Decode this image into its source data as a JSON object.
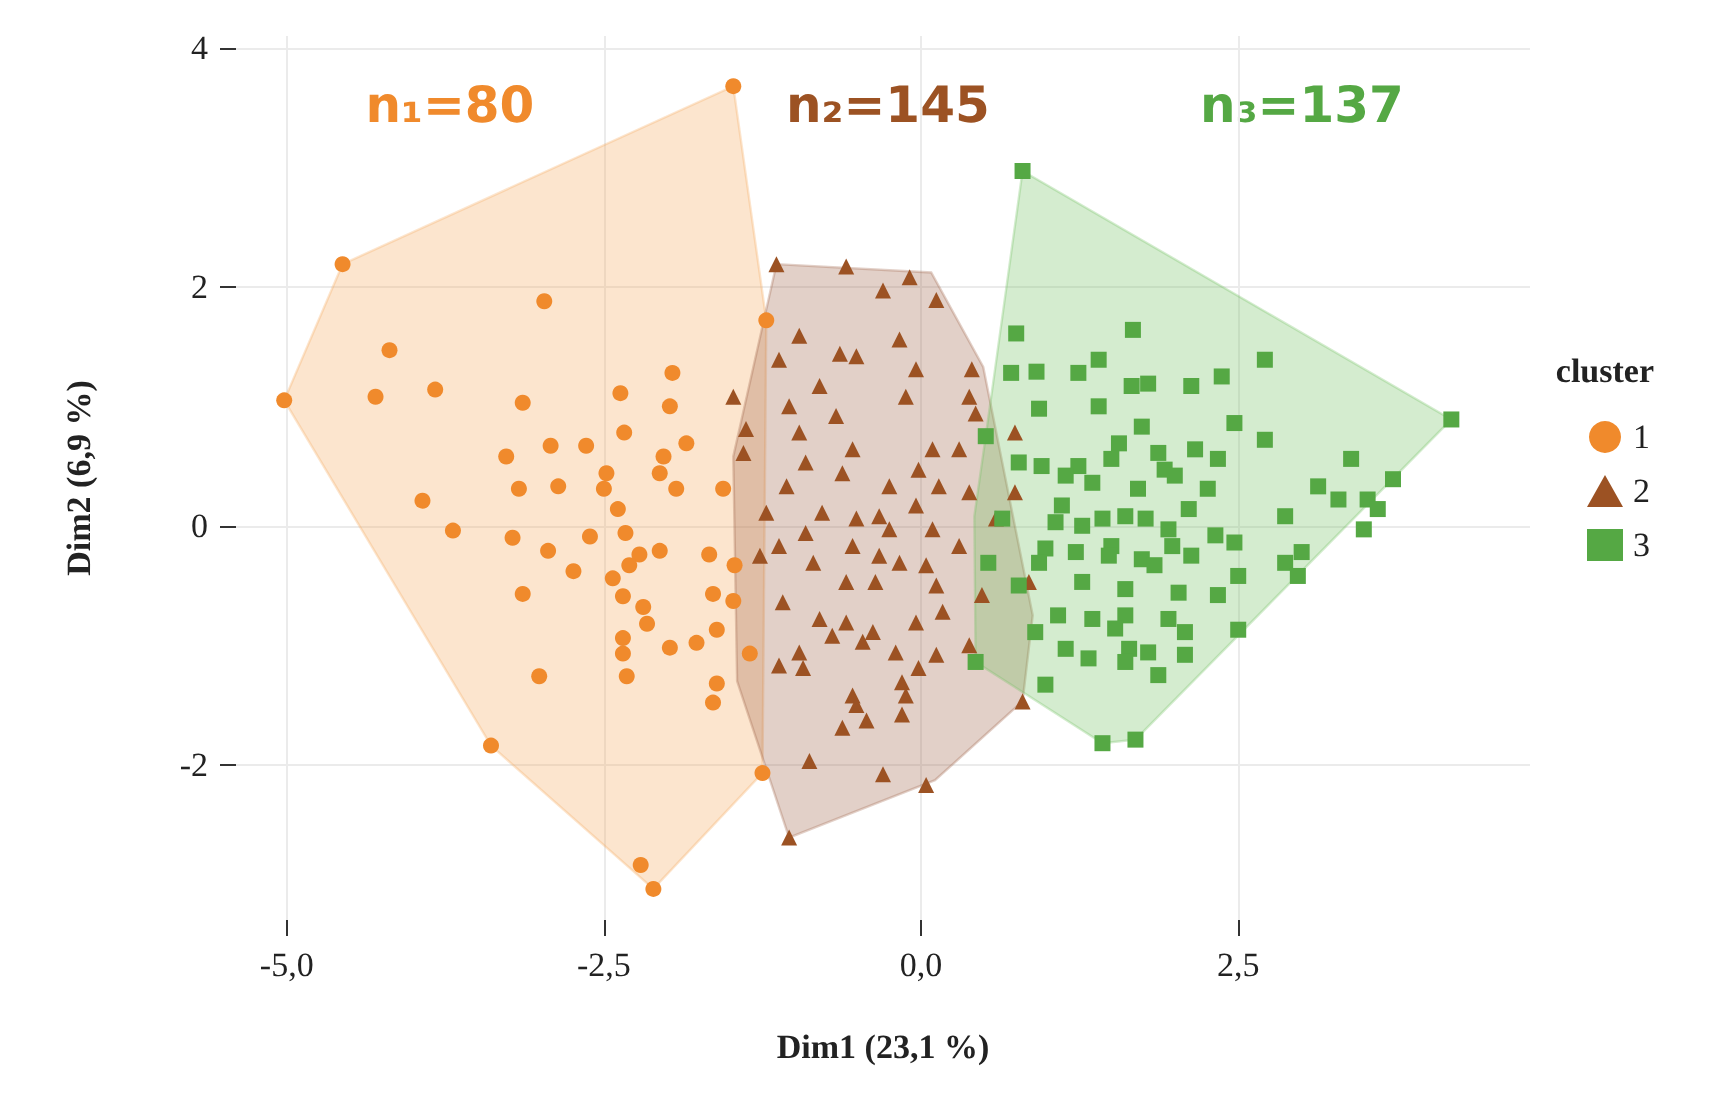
{
  "chart_data": {
    "type": "scatter",
    "xlabel": "Dim1 (23,1 %)",
    "ylabel": "Dim2 (6,9 %)",
    "legend_title": "cluster",
    "legend": "right",
    "grid": true,
    "annotations": [
      "n₁=80",
      "n₂=145",
      "n₃=137"
    ],
    "xlim": [
      -5.4,
      4.8
    ],
    "ylim": [
      -3.3,
      4.1
    ],
    "xticks": [
      {
        "value": -5,
        "label": "-5,0"
      },
      {
        "value": -2.5,
        "label": "-2,5"
      },
      {
        "value": 0,
        "label": "0,0"
      },
      {
        "value": 2.5,
        "label": "2,5"
      }
    ],
    "yticks": [
      -2,
      0,
      2,
      4
    ],
    "series": [
      {
        "type": "area",
        "color": "#f5a85c",
        "x": [
          -5.02,
          -4.56,
          -1.48,
          -1.22,
          -1.25,
          -2.11,
          -3.39
        ],
        "values": [
          1.05,
          2.19,
          3.68,
          1.72,
          -2.07,
          -3.04,
          -1.84
        ]
      },
      {
        "type": "area",
        "color": "#a0644a",
        "x": [
          -1.14,
          0.08,
          0.49,
          0.88,
          0.8,
          0.11,
          -1.04,
          -1.45,
          -1.48
        ],
        "values": [
          2.19,
          2.12,
          1.33,
          -0.75,
          -1.47,
          -2.13,
          -2.61,
          -1.3,
          0.58
        ]
      },
      {
        "type": "area",
        "color": "#6fbf60",
        "x": [
          0.8,
          4.18,
          1.69,
          1.43,
          0.43,
          0.42,
          0.51
        ],
        "values": [
          2.97,
          0.89,
          -1.79,
          -1.82,
          -1.14,
          0.08,
          0.75
        ]
      },
      {
        "name": "1",
        "marker": "circle",
        "color": "#f08a2c",
        "x": [
          -5.02,
          -4.56,
          -1.48,
          -2.97,
          -4.19,
          -4.3,
          -3.83,
          -3.14,
          -2.37,
          -1.96,
          -1.98,
          -2.34,
          -1.85,
          -2.92,
          -2.64,
          -3.27,
          -2.03,
          -2.48,
          -3.17,
          -2.86,
          -2.06,
          -1.93,
          -2.5,
          -3.93,
          -1.56,
          -2.39,
          -3.69,
          -3.22,
          -2.33,
          -2.61,
          -2.94,
          -2.22,
          -2.06,
          -1.67,
          -2.3,
          -2.74,
          -1.47,
          -2.43,
          -3.14,
          -2.35,
          -1.64,
          -2.19,
          -1.48,
          -2.16,
          -1.61,
          -2.35,
          -1.77,
          -1.98,
          -2.35,
          -1.35,
          -3.01,
          -2.32,
          -1.61,
          -1.64,
          -3.39,
          -1.25,
          -2.21,
          -2.11,
          -1.22
        ],
        "values": [
          1.05,
          2.19,
          3.68,
          1.88,
          1.47,
          1.08,
          1.14,
          1.03,
          1.11,
          1.28,
          1.0,
          0.78,
          0.69,
          0.67,
          0.67,
          0.58,
          0.58,
          0.44,
          0.31,
          0.33,
          0.44,
          0.31,
          0.31,
          0.21,
          0.31,
          0.14,
          -0.04,
          -0.1,
          -0.06,
          -0.09,
          -0.21,
          -0.24,
          -0.21,
          -0.24,
          -0.33,
          -0.38,
          -0.33,
          -0.44,
          -0.57,
          -0.59,
          -0.57,
          -0.68,
          -0.63,
          -0.82,
          -0.87,
          -0.94,
          -0.98,
          -1.02,
          -1.07,
          -1.07,
          -1.26,
          -1.26,
          -1.32,
          -1.48,
          -1.84,
          -2.07,
          -2.84,
          -3.04,
          1.72
        ]
      },
      {
        "name": "2",
        "marker": "triangle",
        "color": "#9c5223",
        "x": [
          -1.14,
          -0.59,
          -0.09,
          -0.3,
          0.12,
          -0.96,
          -0.17,
          -0.64,
          -0.51,
          -1.12,
          -0.04,
          0.4,
          -0.8,
          -0.12,
          0.38,
          -1.48,
          -1.04,
          -0.67,
          0.43,
          -1.38,
          -0.96,
          0.74,
          -0.54,
          0.09,
          0.3,
          -1.4,
          -0.91,
          -0.02,
          -0.62,
          0.14,
          -0.25,
          0.38,
          0.74,
          -1.06,
          -0.04,
          -1.22,
          -0.78,
          -0.33,
          -0.51,
          0.59,
          -0.25,
          -0.91,
          0.09,
          -1.12,
          -0.54,
          0.3,
          -0.33,
          -0.85,
          -0.17,
          0.04,
          -1.27,
          -0.59,
          -0.36,
          0.12,
          0.85,
          0.48,
          -1.09,
          0.17,
          -0.8,
          -0.59,
          -0.04,
          -0.38,
          -0.7,
          -0.46,
          0.38,
          -0.2,
          -0.96,
          0.12,
          -1.12,
          -0.93,
          -0.02,
          -0.15,
          -0.12,
          -0.54,
          0.8,
          -0.51,
          -0.15,
          -0.43,
          -0.62,
          -0.88,
          -0.3,
          0.04,
          -1.04
        ],
        "values": [
          2.19,
          2.17,
          2.08,
          1.97,
          1.89,
          1.59,
          1.56,
          1.44,
          1.42,
          1.39,
          1.31,
          1.31,
          1.17,
          1.08,
          1.08,
          1.08,
          1.0,
          0.92,
          0.94,
          0.81,
          0.78,
          0.78,
          0.64,
          0.64,
          0.64,
          0.61,
          0.53,
          0.47,
          0.44,
          0.33,
          0.33,
          0.28,
          0.28,
          0.33,
          0.17,
          0.11,
          0.11,
          0.08,
          0.06,
          0.06,
          -0.03,
          -0.06,
          -0.03,
          -0.17,
          -0.17,
          -0.17,
          -0.25,
          -0.31,
          -0.31,
          -0.33,
          -0.25,
          -0.47,
          -0.47,
          -0.5,
          -0.47,
          -0.58,
          -0.64,
          -0.72,
          -0.78,
          -0.81,
          -0.81,
          -0.89,
          -0.92,
          -0.97,
          -1.0,
          -1.06,
          -1.06,
          -1.08,
          -1.17,
          -1.19,
          -1.19,
          -1.31,
          -1.42,
          -1.42,
          -1.47,
          -1.5,
          -1.58,
          -1.63,
          -1.69,
          -1.97,
          -2.08,
          -2.17,
          -2.61
        ]
      },
      {
        "name": "3",
        "marker": "square",
        "color": "#55a844",
        "x": [
          0.8,
          4.18,
          1.43,
          1.69,
          0.43,
          0.51,
          0.75,
          1.67,
          2.71,
          1.4,
          0.91,
          0.71,
          1.24,
          2.37,
          1.79,
          1.66,
          2.13,
          0.93,
          1.4,
          2.47,
          1.74,
          2.71,
          1.56,
          2.16,
          1.87,
          0.77,
          0.95,
          2.34,
          1.24,
          1.5,
          3.39,
          1.92,
          1.14,
          1.35,
          3.72,
          2.0,
          1.71,
          2.26,
          3.13,
          3.29,
          3.52,
          3.6,
          2.11,
          1.11,
          1.61,
          1.77,
          2.87,
          1.43,
          1.06,
          1.27,
          1.95,
          3.49,
          0.64,
          2.32,
          2.47,
          1.5,
          0.98,
          1.22,
          1.98,
          3.0,
          2.13,
          1.48,
          0.53,
          1.74,
          2.87,
          1.84,
          0.93,
          2.97,
          2.5,
          1.27,
          0.77,
          1.61,
          2.03,
          2.34,
          1.08,
          1.61,
          1.95,
          1.35,
          0.9,
          2.08,
          2.5,
          1.53,
          1.14,
          1.64,
          1.79,
          1.32,
          2.08,
          1.61,
          1.87,
          0.98
        ],
        "values": [
          2.97,
          0.89,
          -1.82,
          -1.79,
          -1.14,
          0.75,
          1.61,
          1.64,
          1.39,
          1.39,
          1.29,
          1.28,
          1.28,
          1.25,
          1.19,
          1.17,
          1.17,
          0.98,
          1.0,
          0.86,
          0.83,
          0.72,
          0.69,
          0.64,
          0.61,
          0.53,
          0.5,
          0.56,
          0.5,
          0.56,
          0.56,
          0.47,
          0.42,
          0.36,
          0.39,
          0.42,
          0.31,
          0.31,
          0.33,
          0.22,
          0.22,
          0.14,
          0.14,
          0.17,
          0.08,
          0.06,
          0.08,
          0.06,
          0.03,
          0.0,
          -0.03,
          -0.03,
          0.06,
          -0.08,
          -0.14,
          -0.17,
          -0.19,
          -0.22,
          -0.17,
          -0.22,
          -0.25,
          -0.25,
          -0.31,
          -0.28,
          -0.31,
          -0.33,
          -0.31,
          -0.42,
          -0.42,
          -0.47,
          -0.5,
          -0.53,
          -0.56,
          -0.58,
          -0.75,
          -0.75,
          -0.78,
          -0.78,
          -0.89,
          -0.89,
          -0.87,
          -0.86,
          -1.03,
          -1.03,
          -1.06,
          -1.11,
          -1.08,
          -1.14,
          -1.25,
          -1.33
        ]
      }
    ]
  }
}
